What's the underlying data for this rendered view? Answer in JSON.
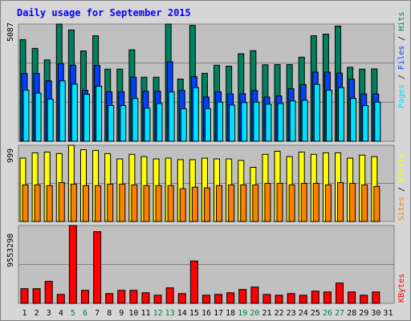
{
  "title": "Daily usage for September 2015",
  "colors": {
    "hits": "#00805c",
    "files": "#0040ff",
    "pages": "#00e0ff",
    "visits": "#ffff00",
    "sites": "#ff8000",
    "kbytes": "#ff0000",
    "panel_bg": "#c0c0c0",
    "frame_bg": "#d6d6d6",
    "title": "#0000ff",
    "weekend": "#008040"
  },
  "chart_data": [
    {
      "type": "bar",
      "categories": [
        "1",
        "2",
        "3",
        "4",
        "5",
        "6",
        "7",
        "8",
        "9",
        "10",
        "11",
        "12",
        "13",
        "14",
        "15",
        "16",
        "17",
        "18",
        "19",
        "20",
        "21",
        "22",
        "23",
        "24",
        "25",
        "26",
        "27",
        "28",
        "29",
        "30",
        "31"
      ],
      "weekend_days": [
        "5",
        "6",
        "12",
        "13",
        "19",
        "20",
        "26",
        "27"
      ],
      "ytick": "5087",
      "legend_right": [
        "Pages",
        "Files",
        "Hits"
      ],
      "legend_separator": "/",
      "series": [
        {
          "name": "Hits",
          "values": [
            4410,
            4030,
            3530,
            5087,
            4830,
            3920,
            4580,
            3130,
            3130,
            3970,
            2780,
            2780,
            5087,
            2700,
            5030,
            2950,
            3300,
            3260,
            3800,
            3930,
            3320,
            3330,
            3330,
            3650,
            4580,
            4650,
            5000,
            3210,
            3130,
            3140,
            0
          ]
        },
        {
          "name": "Files",
          "values": [
            2940,
            2940,
            2620,
            3370,
            3300,
            2210,
            3290,
            2150,
            2150,
            2780,
            2170,
            2170,
            3450,
            2210,
            2810,
            1920,
            2150,
            2060,
            2060,
            2200,
            1920,
            1970,
            2280,
            2460,
            3000,
            3000,
            2960,
            2690,
            2050,
            2050,
            0
          ]
        },
        {
          "name": "Pages",
          "values": [
            2220,
            2090,
            1830,
            2620,
            2480,
            2040,
            2390,
            1550,
            1550,
            1860,
            1440,
            1640,
            2140,
            1410,
            2330,
            1420,
            1700,
            1570,
            1680,
            1700,
            1610,
            1640,
            1750,
            1780,
            2470,
            2220,
            2330,
            1860,
            1550,
            1700,
            0
          ]
        }
      ],
      "ylim": [
        0,
        5087
      ]
    },
    {
      "type": "bar",
      "categories": [
        "1",
        "2",
        "3",
        "4",
        "5",
        "6",
        "7",
        "8",
        "9",
        "10",
        "11",
        "12",
        "13",
        "14",
        "15",
        "16",
        "17",
        "18",
        "19",
        "20",
        "21",
        "22",
        "23",
        "24",
        "25",
        "26",
        "27",
        "28",
        "29",
        "30",
        "31"
      ],
      "ytick": "999",
      "legend_right": [
        "Sites",
        "Visits"
      ],
      "legend_separator": "/",
      "series": [
        {
          "name": "Visits",
          "values": [
            830,
            900,
            910,
            890,
            999,
            940,
            930,
            890,
            820,
            880,
            850,
            820,
            830,
            810,
            810,
            830,
            820,
            820,
            800,
            710,
            880,
            920,
            850,
            910,
            880,
            900,
            900,
            830,
            870,
            850,
            0
          ]
        },
        {
          "name": "Sites",
          "values": [
            480,
            480,
            470,
            510,
            490,
            470,
            470,
            490,
            490,
            480,
            470,
            470,
            470,
            430,
            450,
            440,
            470,
            480,
            480,
            480,
            500,
            500,
            480,
            500,
            500,
            480,
            510,
            500,
            480,
            460,
            0
          ]
        }
      ],
      "ylim": [
        0,
        999
      ]
    },
    {
      "type": "bar",
      "categories": [
        "1",
        "2",
        "3",
        "4",
        "5",
        "6",
        "7",
        "8",
        "9",
        "10",
        "11",
        "12",
        "13",
        "14",
        "15",
        "16",
        "17",
        "18",
        "19",
        "20",
        "21",
        "22",
        "23",
        "24",
        "25",
        "26",
        "27",
        "28",
        "29",
        "30",
        "31"
      ],
      "ytick": "9553298",
      "legend_right": [
        "KBytes"
      ],
      "series": [
        {
          "name": "KBytes",
          "values": [
            1800000,
            1800000,
            2700000,
            1100000,
            9553298,
            1600000,
            8800000,
            1200000,
            1600000,
            1600000,
            1300000,
            1000000,
            1900000,
            1200000,
            5200000,
            1000000,
            1100000,
            1300000,
            1700000,
            2000000,
            1100000,
            1000000,
            1200000,
            1000000,
            1500000,
            1400000,
            2500000,
            1400000,
            1000000,
            1400000,
            0
          ]
        }
      ],
      "ylim": [
        0,
        9553298
      ]
    }
  ]
}
